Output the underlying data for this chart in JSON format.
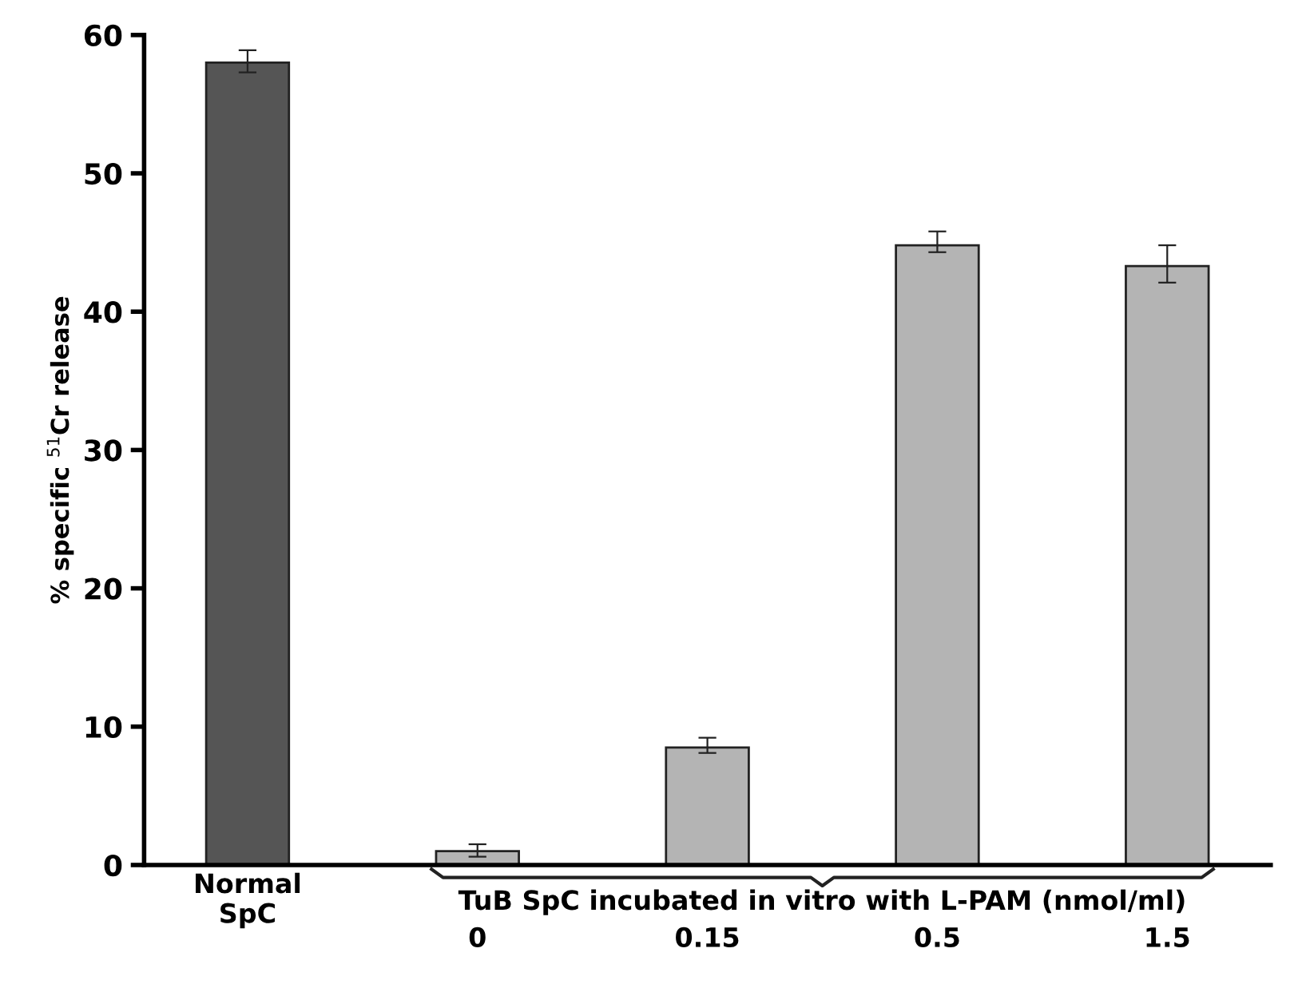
{
  "chart_data": {
    "type": "bar",
    "ylabel": "% specific $^{51}$Cr release",
    "categories": [
      "Normal\nSpC",
      "0",
      "0.15",
      "0.5",
      "1.5"
    ],
    "values": [
      58,
      1,
      8.5,
      44.8,
      43.3
    ],
    "errors": [
      [
        57.3,
        58.9
      ],
      [
        0.6,
        1.5
      ],
      [
        8.1,
        9.2
      ],
      [
        44.3,
        45.8
      ],
      [
        42.1,
        44.8
      ]
    ],
    "colors": [
      "#555555",
      "#b4b4b4",
      "#b4b4b4",
      "#b4b4b4",
      "#b4b4b4"
    ],
    "ylim": [
      0,
      60
    ],
    "yticks": [
      0,
      10,
      20,
      30,
      40,
      50,
      60
    ],
    "grid": false,
    "annotations": [
      "TuB SpC incubated in vitro with L-PAM (nmol/ml)"
    ]
  }
}
